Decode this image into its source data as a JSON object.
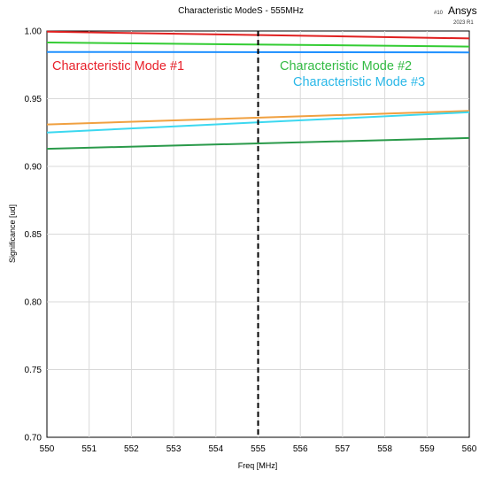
{
  "header": {
    "title": "Characteristic ModeS - 555MHz",
    "brand_prefix": "#10",
    "brand": "Ansys",
    "brand_version": "2023 R1"
  },
  "chart_data": {
    "type": "line",
    "title": "Characteristic ModeS - 555MHz",
    "xlabel": "Freq [MHz]",
    "ylabel": "Significance [ud]",
    "xlim": [
      550,
      560
    ],
    "ylim": [
      0.7,
      1.0
    ],
    "x_ticks": [
      550,
      551,
      552,
      553,
      554,
      555,
      556,
      557,
      558,
      559,
      560
    ],
    "y_ticks": [
      0.7,
      0.75,
      0.8,
      0.85,
      0.9,
      0.95,
      1.0
    ],
    "x_tick_labels": [
      "550",
      "551",
      "552",
      "553",
      "554",
      "555",
      "556",
      "557",
      "558",
      "559",
      "560"
    ],
    "y_tick_labels": [
      "0.70",
      "0.75",
      "0.80",
      "0.85",
      "0.90",
      "0.95",
      "1.00"
    ],
    "grid": true,
    "marker_line": {
      "x": 555,
      "style": "dashed",
      "color": "#000000"
    },
    "series": [
      {
        "id": "red",
        "color": "#e02020",
        "x": [
          550,
          560
        ],
        "values": [
          0.9995,
          0.9945
        ]
      },
      {
        "id": "green",
        "color": "#33cc33",
        "x": [
          550,
          560
        ],
        "values": [
          0.9915,
          0.9885
        ]
      },
      {
        "id": "blue",
        "color": "#1e90ff",
        "x": [
          550,
          560
        ],
        "values": [
          0.9845,
          0.9842
        ]
      },
      {
        "id": "orange",
        "color": "#f0a040",
        "x": [
          550,
          560
        ],
        "values": [
          0.931,
          0.941
        ]
      },
      {
        "id": "cyan",
        "color": "#3cd8f0",
        "x": [
          550,
          560
        ],
        "values": [
          0.925,
          0.94
        ]
      },
      {
        "id": "darkgreen",
        "color": "#2a9a4a",
        "x": [
          550,
          560
        ],
        "values": [
          0.913,
          0.921
        ]
      }
    ],
    "annotations": [
      {
        "id": "mode1",
        "text": "Characteristic Mode #1",
        "color": "#e8202a"
      },
      {
        "id": "mode2",
        "text": "Characteristic Mode #2",
        "color": "#33bb44"
      },
      {
        "id": "mode3",
        "text": "Characteristic Mode #3",
        "color": "#2ab8e8"
      }
    ]
  }
}
